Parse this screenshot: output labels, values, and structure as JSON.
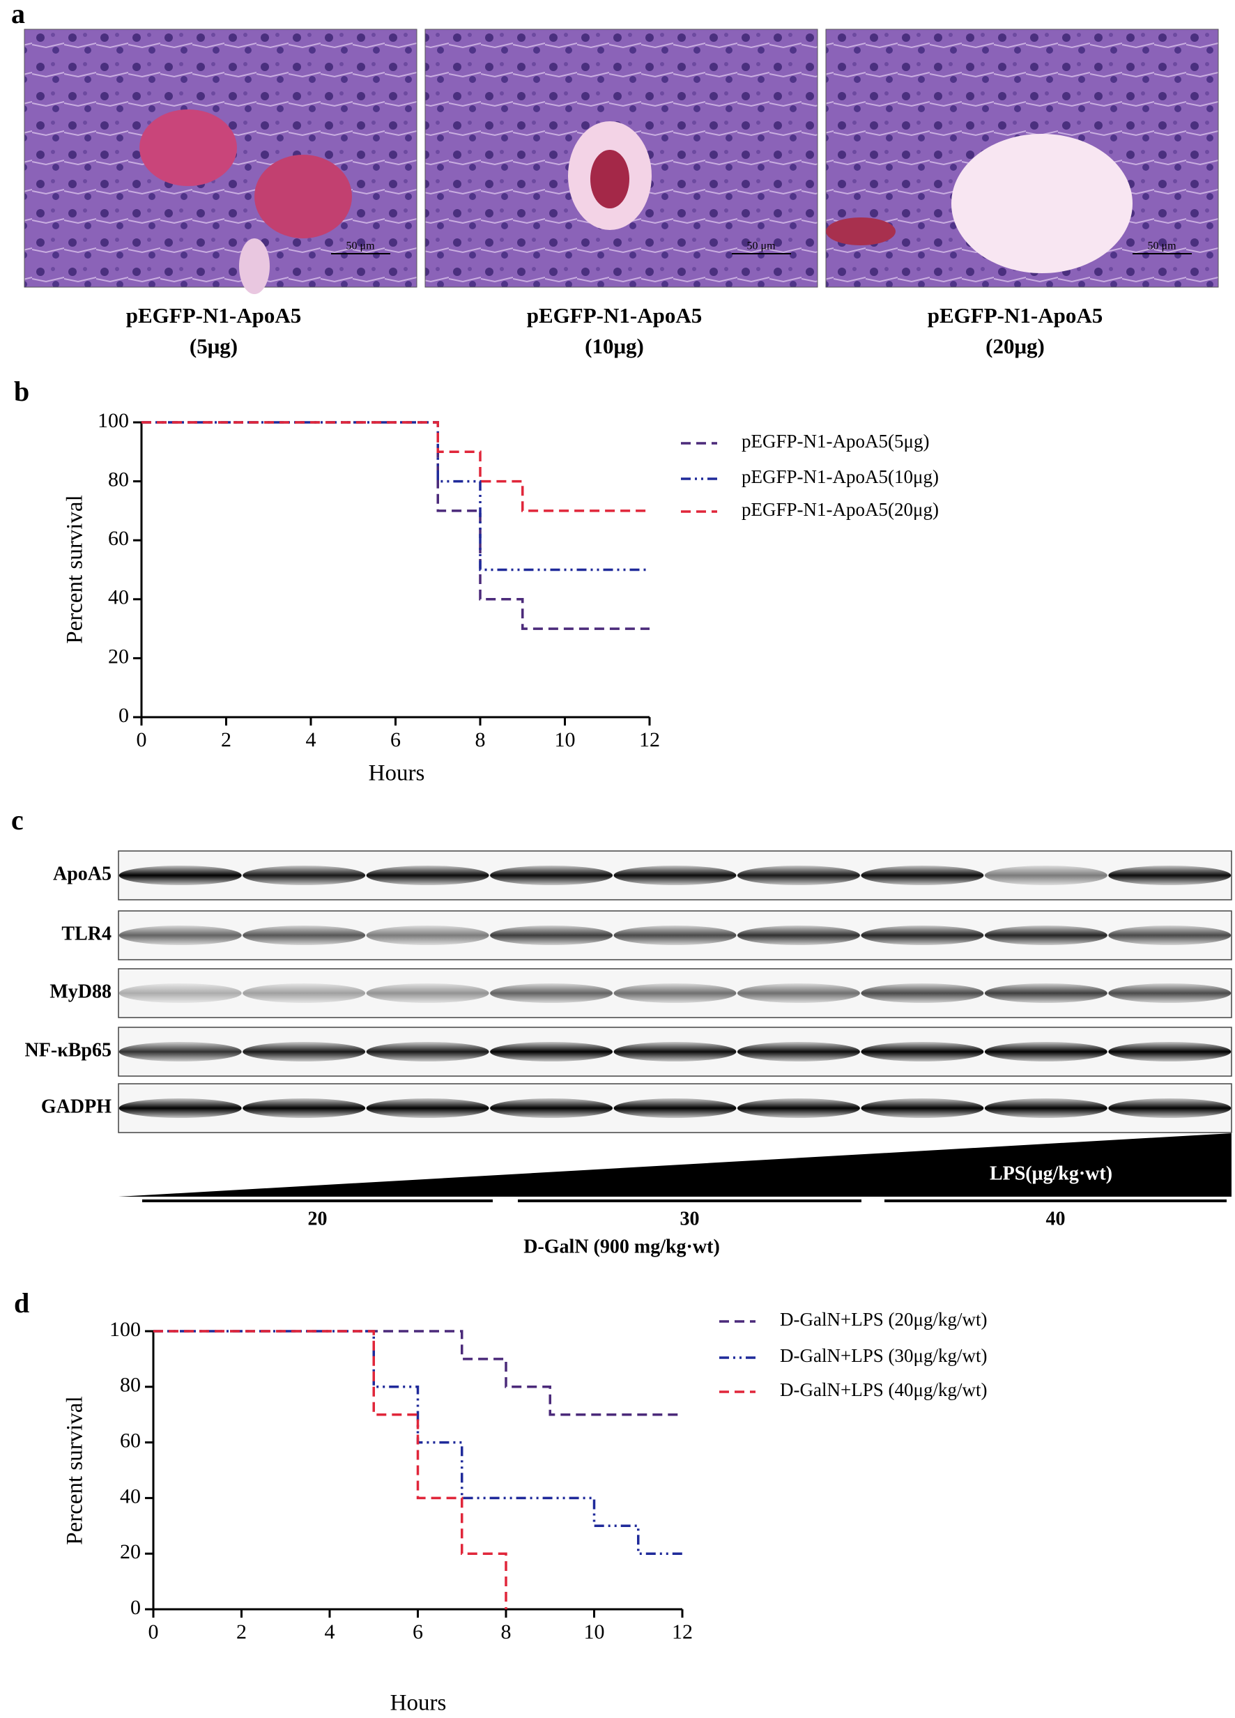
{
  "panel_labels": [
    "a",
    "b",
    "c",
    "d"
  ],
  "micrographs": [
    {
      "caption": "pEGFP-N1-ApoA5",
      "dose": "(5μg)",
      "scale_bar": "50 μm"
    },
    {
      "caption": "pEGFP-N1-ApoA5",
      "dose": "(10μg)",
      "scale_bar": "50 μm"
    },
    {
      "caption": "pEGFP-N1-ApoA5",
      "dose": "(20μg)",
      "scale_bar": "50 μm"
    }
  ],
  "blot": {
    "rows": [
      "ApoA5",
      "TLR4",
      "MyD88",
      "NF-κBp65",
      "GADPH"
    ],
    "triangle_label": "LPS(μg/kg·wt)",
    "groups": [
      "20",
      "30",
      "40"
    ],
    "group_title": "D-GalN (900 mg/kg·wt)"
  },
  "chart_data": [
    {
      "type": "line",
      "step": true,
      "xlabel": "Hours",
      "ylabel": "Percent survival",
      "xlim": [
        0,
        12
      ],
      "ylim": [
        0,
        100
      ],
      "xticks": [
        0,
        2,
        4,
        6,
        8,
        10,
        12
      ],
      "yticks": [
        0,
        20,
        40,
        60,
        80,
        100
      ],
      "series": [
        {
          "name": "pEGFP-N1-ApoA5(5μg)",
          "color": "#4b2a7a",
          "dash": "dashed",
          "x": [
            0,
            7,
            8,
            9,
            12
          ],
          "values": [
            100,
            70,
            40,
            30,
            30
          ]
        },
        {
          "name": "pEGFP-N1-ApoA5(10μg)",
          "color": "#1f2a9a",
          "dash": "dash-dot-dot",
          "x": [
            0,
            7,
            8,
            12
          ],
          "values": [
            100,
            80,
            50,
            50
          ]
        },
        {
          "name": "pEGFP-N1-ApoA5(20μg)",
          "color": "#e0263a",
          "dash": "dashed",
          "x": [
            0,
            7,
            8,
            9,
            12
          ],
          "values": [
            100,
            90,
            80,
            70,
            70
          ]
        }
      ]
    },
    {
      "type": "line",
      "step": true,
      "xlabel": "Hours",
      "ylabel": "Percent survival",
      "xlim": [
        0,
        12
      ],
      "ylim": [
        0,
        100
      ],
      "xticks": [
        0,
        2,
        4,
        6,
        8,
        10,
        12
      ],
      "yticks": [
        0,
        20,
        40,
        60,
        80,
        100
      ],
      "series": [
        {
          "name": "D-GalN+LPS (20μg/kg/wt)",
          "color": "#4b2a7a",
          "dash": "dashed",
          "x": [
            0,
            7,
            8,
            9,
            12
          ],
          "values": [
            100,
            90,
            80,
            70,
            70
          ]
        },
        {
          "name": "D-GalN+LPS (30μg/kg/wt)",
          "color": "#1f2a9a",
          "dash": "dash-dot-dot",
          "x": [
            0,
            5,
            6,
            7,
            10,
            11,
            12
          ],
          "values": [
            100,
            80,
            60,
            40,
            30,
            20,
            20
          ]
        },
        {
          "name": "D-GalN+LPS (40μg/kg/wt)",
          "color": "#e0263a",
          "dash": "dashed",
          "x": [
            0,
            5,
            6,
            7,
            8
          ],
          "values": [
            100,
            70,
            40,
            20,
            0
          ]
        }
      ]
    }
  ]
}
